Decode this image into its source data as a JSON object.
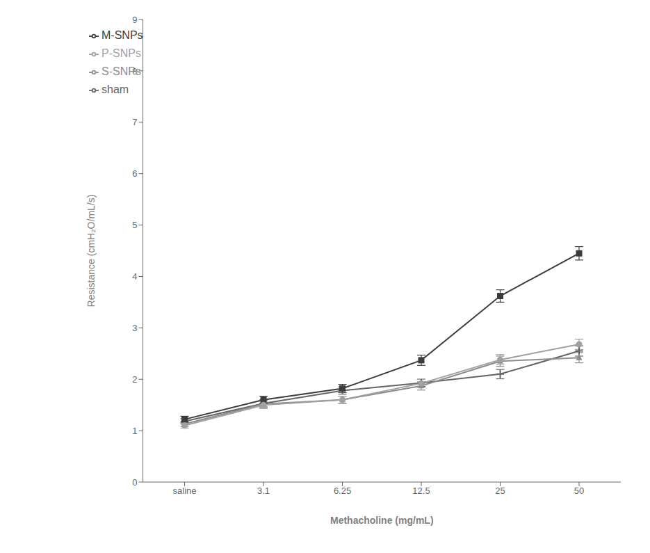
{
  "chart_data": {
    "type": "line",
    "categories": [
      "saline",
      "3.1",
      "6.25",
      "12.5",
      "25",
      "50"
    ],
    "x_label": "Methacholine (mg/mL)",
    "y_label": "Resistance (cmH₂O/mL/s)",
    "ylim": [
      0,
      9
    ],
    "yticks": [
      0,
      1,
      2,
      3,
      4,
      5,
      6,
      7,
      8,
      9
    ],
    "grid": false,
    "legend": "upper left",
    "series": [
      {
        "name": "sham",
        "color": "#646464",
        "marker": "plus",
        "values": [
          1.18,
          1.53,
          1.78,
          1.93,
          2.1,
          2.55
        ],
        "errors": [
          0.05,
          0.07,
          0.07,
          0.07,
          0.09,
          0.1
        ]
      },
      {
        "name": "S-SNPs",
        "color": "#8c8c8c",
        "marker": "triangle",
        "values": [
          1.13,
          1.52,
          1.6,
          1.87,
          2.35,
          2.42
        ],
        "errors": [
          0.05,
          0.07,
          0.07,
          0.08,
          0.1,
          0.1
        ]
      },
      {
        "name": "M-SNPs",
        "color": "#3c3c3c",
        "marker": "square",
        "values": [
          1.22,
          1.6,
          1.82,
          2.37,
          3.62,
          4.45
        ],
        "errors": [
          0.06,
          0.07,
          0.08,
          0.1,
          0.12,
          0.13
        ]
      },
      {
        "name": "P-SNPs",
        "color": "#a0a0a0",
        "marker": "circle",
        "values": [
          1.1,
          1.5,
          1.6,
          1.92,
          2.38,
          2.68
        ],
        "errors": [
          0.05,
          0.07,
          0.07,
          0.08,
          0.1,
          0.1
        ]
      }
    ]
  }
}
